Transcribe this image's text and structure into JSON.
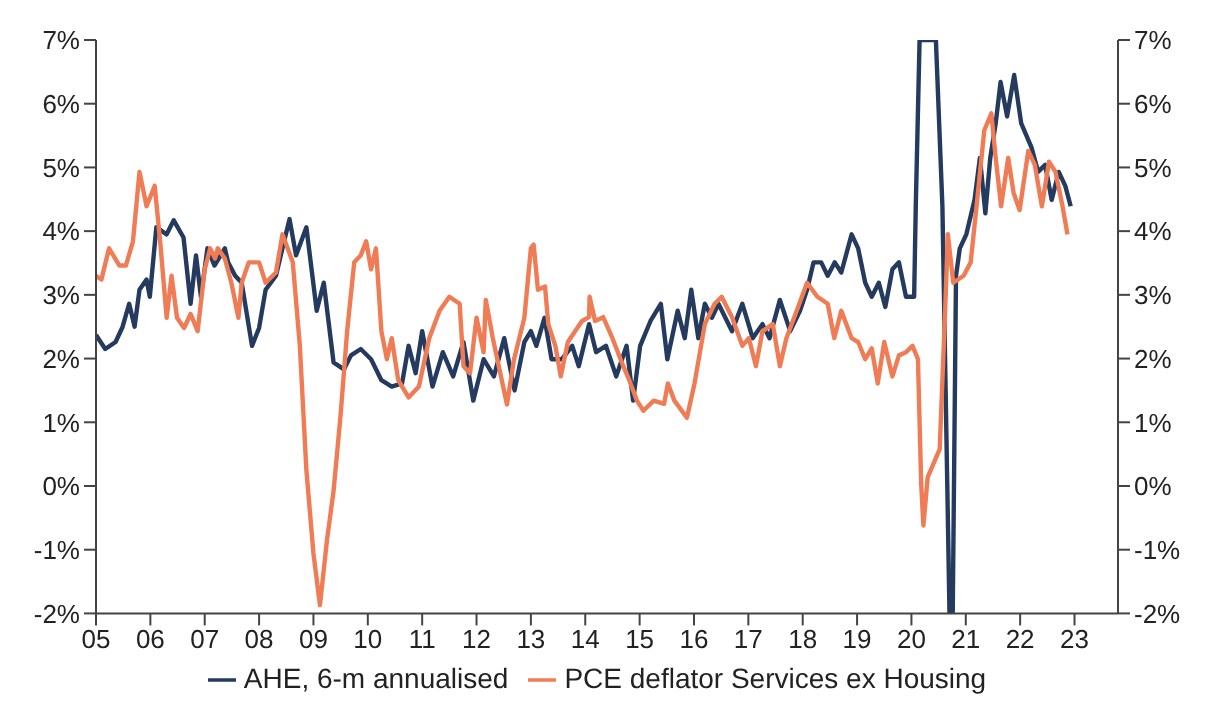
{
  "chart_data": {
    "type": "line",
    "legend": "bottom",
    "marker": "none",
    "line_style": "solid",
    "xlim": [
      2005,
      2023.8
    ],
    "xticks": [
      {
        "value": 2005,
        "label": "05"
      },
      {
        "value": 2006,
        "label": "06"
      },
      {
        "value": 2007,
        "label": "07"
      },
      {
        "value": 2008,
        "label": "08"
      },
      {
        "value": 2009,
        "label": "09"
      },
      {
        "value": 2010,
        "label": "10"
      },
      {
        "value": 2011,
        "label": "11"
      },
      {
        "value": 2012,
        "label": "12"
      },
      {
        "value": 2013,
        "label": "13"
      },
      {
        "value": 2014,
        "label": "14"
      },
      {
        "value": 2015,
        "label": "15"
      },
      {
        "value": 2016,
        "label": "16"
      },
      {
        "value": 2017,
        "label": "17"
      },
      {
        "value": 2018,
        "label": "18"
      },
      {
        "value": 2019,
        "label": "19"
      },
      {
        "value": 2020,
        "label": "20"
      },
      {
        "value": 2021,
        "label": "21"
      },
      {
        "value": 2022,
        "label": "22"
      },
      {
        "value": 2023,
        "label": "23"
      }
    ],
    "ylim": [
      -2,
      7
    ],
    "yticks": [
      {
        "value": -2,
        "label": "-2%"
      },
      {
        "value": -1,
        "label": "-1%"
      },
      {
        "value": 0,
        "label": "0%"
      },
      {
        "value": 1,
        "label": "1%"
      },
      {
        "value": 2,
        "label": "2%"
      },
      {
        "value": 3,
        "label": "3%"
      },
      {
        "value": 4,
        "label": "4%"
      },
      {
        "value": 5,
        "label": "5%"
      },
      {
        "value": 6,
        "label": "6%"
      },
      {
        "value": 7,
        "label": "7%"
      }
    ],
    "y2lim": [
      -2,
      7
    ],
    "y2ticks": [
      {
        "value": -2,
        "label": "-2%"
      },
      {
        "value": -1,
        "label": "-1%"
      },
      {
        "value": 0,
        "label": "0%"
      },
      {
        "value": 1,
        "label": "1%"
      },
      {
        "value": 2,
        "label": "2%"
      },
      {
        "value": 3,
        "label": "3%"
      },
      {
        "value": 4,
        "label": "4%"
      },
      {
        "value": 5,
        "label": "5%"
      },
      {
        "value": 6,
        "label": "6%"
      },
      {
        "value": 7,
        "label": "7%"
      }
    ],
    "series": [
      {
        "name": "AHE, 6-m annualised",
        "color": "#243a5e",
        "x": [
          2005.0,
          2005.17,
          2005.36,
          2005.49,
          2005.61,
          2005.71,
          2005.8,
          2005.93,
          2005.99,
          2006.11,
          2006.3,
          2006.43,
          2006.61,
          2006.74,
          2006.84,
          2006.93,
          2007.05,
          2007.18,
          2007.37,
          2007.43,
          2007.56,
          2007.68,
          2007.87,
          2008.0,
          2008.12,
          2008.31,
          2008.43,
          2008.56,
          2008.68,
          2008.87,
          2009.06,
          2009.19,
          2009.37,
          2009.56,
          2009.69,
          2009.87,
          2010.06,
          2010.25,
          2010.44,
          2010.63,
          2010.75,
          2010.88,
          2011.0,
          2011.19,
          2011.38,
          2011.57,
          2011.76,
          2011.94,
          2012.13,
          2012.32,
          2012.51,
          2012.7,
          2012.88,
          2013.0,
          2013.1,
          2013.25,
          2013.38,
          2013.57,
          2013.76,
          2013.88,
          2014.07,
          2014.2,
          2014.38,
          2014.57,
          2014.76,
          2014.88,
          2015.01,
          2015.2,
          2015.39,
          2015.51,
          2015.7,
          2015.83,
          2015.95,
          2016.08,
          2016.2,
          2016.33,
          2016.45,
          2016.7,
          2016.89,
          2017.08,
          2017.26,
          2017.39,
          2017.58,
          2017.77,
          2017.95,
          2018.08,
          2018.2,
          2018.34,
          2018.46,
          2018.59,
          2018.71,
          2018.9,
          2019.02,
          2019.15,
          2019.27,
          2019.4,
          2019.52,
          2019.65,
          2019.77,
          2019.9,
          2020.05,
          2020.08,
          2020.15,
          2020.2,
          2020.45,
          2020.57,
          2020.66,
          2020.7,
          2020.76,
          2020.82,
          2020.89,
          2021.01,
          2021.16,
          2021.26,
          2021.36,
          2021.45,
          2021.55,
          2021.64,
          2021.76,
          2021.89,
          2022.02,
          2022.21,
          2022.33,
          2022.46,
          2022.58,
          2022.71,
          2022.83,
          2022.93
        ],
        "values": [
          2.37,
          2.15,
          2.26,
          2.5,
          2.86,
          2.5,
          3.08,
          3.24,
          2.97,
          4.06,
          3.95,
          4.17,
          3.9,
          2.86,
          3.62,
          2.97,
          3.73,
          3.46,
          3.73,
          3.51,
          3.3,
          3.19,
          2.2,
          2.48,
          3.08,
          3.3,
          3.73,
          4.19,
          3.62,
          4.06,
          2.75,
          3.19,
          1.94,
          1.83,
          2.05,
          2.15,
          1.99,
          1.66,
          1.56,
          1.61,
          2.2,
          1.77,
          2.43,
          1.56,
          2.1,
          1.72,
          2.26,
          1.34,
          1.99,
          1.72,
          2.32,
          1.5,
          2.26,
          2.43,
          2.2,
          2.64,
          1.99,
          1.99,
          2.2,
          1.88,
          2.54,
          2.1,
          2.2,
          1.72,
          2.2,
          1.34,
          2.2,
          2.59,
          2.86,
          1.99,
          2.75,
          2.32,
          3.08,
          2.32,
          2.86,
          2.64,
          2.86,
          2.43,
          2.86,
          2.32,
          2.54,
          2.32,
          2.92,
          2.43,
          2.75,
          3.08,
          3.51,
          3.51,
          3.3,
          3.51,
          3.35,
          3.95,
          3.73,
          3.19,
          2.97,
          3.19,
          2.81,
          3.4,
          3.51,
          2.97,
          2.97,
          4.39,
          7,
          7,
          7,
          4.39,
          0,
          -2,
          -2,
          3.3,
          3.73,
          3.95,
          4.49,
          5.15,
          4.28,
          5.15,
          5.69,
          6.34,
          5.8,
          6.45,
          5.69,
          5.31,
          4.93,
          5.04,
          4.49,
          4.93,
          4.71,
          4.39
        ]
      },
      {
        "name": "PCE deflator Services ex Housing",
        "color": "#f07c55",
        "x": [
          2005.0,
          2005.1,
          2005.24,
          2005.43,
          2005.55,
          2005.68,
          2005.8,
          2005.93,
          2006.08,
          2006.18,
          2006.3,
          2006.39,
          2006.49,
          2006.62,
          2006.74,
          2006.87,
          2007.0,
          2007.1,
          2007.19,
          2007.24,
          2007.37,
          2007.49,
          2007.62,
          2007.68,
          2007.81,
          2008.0,
          2008.12,
          2008.31,
          2008.43,
          2008.62,
          2008.75,
          2008.87,
          2009.0,
          2009.12,
          2009.25,
          2009.37,
          2009.5,
          2009.62,
          2009.75,
          2009.87,
          2009.97,
          2010.06,
          2010.15,
          2010.25,
          2010.35,
          2010.44,
          2010.56,
          2010.75,
          2010.94,
          2011.13,
          2011.32,
          2011.5,
          2011.69,
          2011.76,
          2011.88,
          2012.0,
          2012.13,
          2012.17,
          2012.3,
          2012.56,
          2012.69,
          2012.88,
          2013.0,
          2013.05,
          2013.13,
          2013.26,
          2013.32,
          2013.45,
          2013.55,
          2013.68,
          2013.94,
          2014.07,
          2014.08,
          2014.18,
          2014.33,
          2014.5,
          2014.7,
          2014.81,
          2014.95,
          2015.07,
          2015.26,
          2015.45,
          2015.52,
          2015.64,
          2015.87,
          2016.01,
          2016.2,
          2016.38,
          2016.51,
          2016.7,
          2016.89,
          2017.01,
          2017.14,
          2017.26,
          2017.45,
          2017.58,
          2017.7,
          2017.89,
          2018.08,
          2018.27,
          2018.46,
          2018.58,
          2018.71,
          2018.9,
          2019.02,
          2019.15,
          2019.27,
          2019.38,
          2019.5,
          2019.65,
          2019.77,
          2019.9,
          2020.02,
          2020.12,
          2020.18,
          2020.22,
          2020.3,
          2020.52,
          2020.62,
          2020.67,
          2020.77,
          2020.96,
          2021.09,
          2021.21,
          2021.34,
          2021.47,
          2021.55,
          2021.65,
          2021.78,
          2021.88,
          2021.99,
          2022.15,
          2022.27,
          2022.4,
          2022.53,
          2022.65,
          2022.78,
          2022.87
        ],
        "values": [
          3.3,
          3.24,
          3.73,
          3.46,
          3.46,
          3.84,
          4.93,
          4.39,
          4.71,
          3.84,
          2.64,
          3.3,
          2.64,
          2.48,
          2.7,
          2.43,
          3.4,
          3.73,
          3.57,
          3.73,
          3.57,
          3.19,
          2.64,
          3.19,
          3.51,
          3.51,
          3.19,
          3.35,
          3.95,
          3.51,
          2.2,
          0.25,
          -1.06,
          -1.87,
          -0.84,
          -0.08,
          1.12,
          2.43,
          3.51,
          3.62,
          3.84,
          3.4,
          3.73,
          2.43,
          1.99,
          2.32,
          1.66,
          1.39,
          1.56,
          2.32,
          2.75,
          2.97,
          2.86,
          1.88,
          1.77,
          2.64,
          2.1,
          2.92,
          2.32,
          1.28,
          1.99,
          2.64,
          3.73,
          3.79,
          3.08,
          3.13,
          2.54,
          2.2,
          1.72,
          2.26,
          2.59,
          2.65,
          2.97,
          2.59,
          2.65,
          2.32,
          1.88,
          1.66,
          1.34,
          1.18,
          1.34,
          1.29,
          1.61,
          1.34,
          1.07,
          1.61,
          2.54,
          2.86,
          2.97,
          2.65,
          2.2,
          2.32,
          1.88,
          2.43,
          2.54,
          1.88,
          2.32,
          2.75,
          3.19,
          2.97,
          2.86,
          2.32,
          2.75,
          2.32,
          2.26,
          1.99,
          2.16,
          1.61,
          2.26,
          1.72,
          2.05,
          2.1,
          2.2,
          1.99,
          0.03,
          -0.62,
          0.14,
          0.58,
          2.75,
          3.95,
          3.19,
          3.3,
          3.51,
          4.49,
          5.58,
          5.85,
          5.15,
          4.39,
          5.15,
          4.6,
          4.33,
          5.26,
          5.04,
          4.39,
          5.09,
          4.93,
          4.39,
          3.95
        ]
      }
    ]
  }
}
